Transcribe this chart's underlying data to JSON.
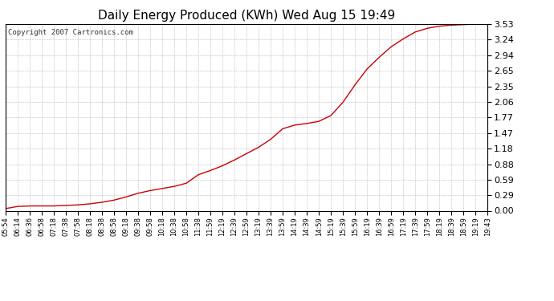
{
  "title": "Daily Energy Produced (KWh) Wed Aug 15 19:49",
  "copyright_text": "Copyright 2007 Cartronics.com",
  "line_color": "#cc0000",
  "background_color": "#ffffff",
  "plot_bg_color": "#ffffff",
  "grid_color": "#aaaaaa",
  "yticks": [
    0.0,
    0.29,
    0.59,
    0.88,
    1.18,
    1.47,
    1.77,
    2.06,
    2.35,
    2.65,
    2.94,
    3.24,
    3.53
  ],
  "ymax": 3.53,
  "ymin": 0.0,
  "xtick_labels": [
    "05:54",
    "06:14",
    "06:36",
    "06:58",
    "07:18",
    "07:38",
    "07:58",
    "08:18",
    "08:38",
    "08:58",
    "09:18",
    "09:38",
    "09:58",
    "10:18",
    "10:38",
    "10:58",
    "11:38",
    "11:59",
    "12:19",
    "12:39",
    "12:59",
    "13:19",
    "13:39",
    "13:59",
    "14:19",
    "14:39",
    "14:59",
    "15:19",
    "15:39",
    "15:59",
    "16:19",
    "16:39",
    "16:59",
    "17:19",
    "17:39",
    "17:59",
    "18:19",
    "18:39",
    "18:59",
    "19:19",
    "19:43"
  ],
  "y_values": [
    0.04,
    0.08,
    0.09,
    0.09,
    0.09,
    0.1,
    0.11,
    0.13,
    0.16,
    0.2,
    0.26,
    0.33,
    0.38,
    0.42,
    0.46,
    0.52,
    0.68,
    0.76,
    0.85,
    0.96,
    1.08,
    1.2,
    1.35,
    1.55,
    1.62,
    1.65,
    1.69,
    1.8,
    2.05,
    2.38,
    2.68,
    2.9,
    3.1,
    3.25,
    3.38,
    3.45,
    3.49,
    3.51,
    3.52,
    3.53,
    3.53
  ],
  "title_fontsize": 11,
  "copyright_fontsize": 6.5,
  "ytick_fontsize": 8,
  "xtick_fontsize": 6
}
